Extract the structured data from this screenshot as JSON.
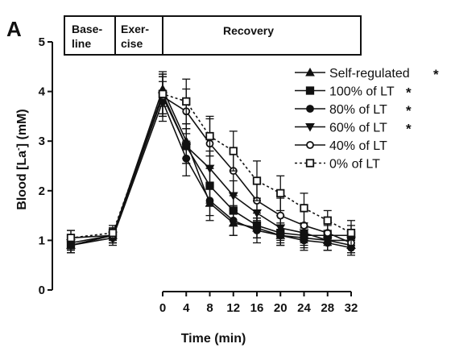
{
  "chart_data": {
    "type": "line",
    "panel_label": "A",
    "xlabel": "Time (min)",
    "ylabel_parts": [
      "Blood [La",
      "-",
      "] (mM)"
    ],
    "ylim": [
      0,
      5
    ],
    "yticks": [
      "0",
      "1",
      "2",
      "3",
      "4",
      "5"
    ],
    "x_ticks": [
      0,
      4,
      8,
      12,
      16,
      20,
      24,
      28,
      32
    ],
    "x_tick_labels": [
      "0",
      "4",
      "8",
      "12",
      "16",
      "20",
      "24",
      "28",
      "32"
    ],
    "phases": [
      {
        "name": "baseline",
        "lines": [
          "Base-",
          "line"
        ]
      },
      {
        "name": "exercise",
        "lines": [
          "Exer-",
          "cise"
        ]
      },
      {
        "name": "recovery",
        "lines": [
          "Recovery"
        ]
      }
    ],
    "grid": false,
    "legend_position": "top-right",
    "series": [
      {
        "name": "Self-regulated",
        "star": "*",
        "marker": "triangle-up",
        "line": "solid",
        "color": "#111111",
        "values": [
          0.9,
          1.1,
          4.05,
          3.0,
          1.75,
          1.35,
          1.25,
          1.1,
          1.05,
          1.0,
          0.9
        ],
        "errors": [
          0.15,
          0.15,
          0.35,
          0.35,
          0.35,
          0.25,
          0.2,
          0.2,
          0.2,
          0.2,
          0.15
        ]
      },
      {
        "name": "100% of LT",
        "star": "*",
        "marker": "square",
        "line": "solid",
        "color": "#111111",
        "values": [
          0.9,
          1.1,
          3.95,
          2.9,
          2.1,
          1.6,
          1.3,
          1.15,
          1.1,
          1.1,
          1.1
        ],
        "errors": [
          0.15,
          0.15,
          0.4,
          0.35,
          0.35,
          0.3,
          0.25,
          0.2,
          0.2,
          0.2,
          0.2
        ]
      },
      {
        "name": "80% of LT",
        "star": "*",
        "marker": "circle",
        "line": "solid",
        "color": "#111111",
        "values": [
          0.9,
          1.05,
          3.8,
          2.65,
          1.8,
          1.4,
          1.2,
          1.1,
          1.0,
          0.95,
          0.85
        ],
        "errors": [
          0.15,
          0.15,
          0.4,
          0.35,
          0.3,
          0.3,
          0.25,
          0.2,
          0.2,
          0.15,
          0.15
        ]
      },
      {
        "name": "60% of LT",
        "star": "*",
        "marker": "triangle-down",
        "line": "solid",
        "color": "#111111",
        "values": [
          0.95,
          1.1,
          3.9,
          2.9,
          2.45,
          1.9,
          1.55,
          1.25,
          1.15,
          1.0,
          1.0
        ],
        "errors": [
          0.15,
          0.15,
          0.4,
          0.35,
          0.35,
          0.3,
          0.3,
          0.25,
          0.2,
          0.2,
          0.15
        ]
      },
      {
        "name": "40% of LT",
        "star": "",
        "marker": "circle-open",
        "line": "solid",
        "color": "#111111",
        "values": [
          1.05,
          1.1,
          3.9,
          3.6,
          2.95,
          2.4,
          1.8,
          1.5,
          1.3,
          1.15,
          0.95
        ],
        "errors": [
          0.15,
          0.15,
          0.4,
          0.45,
          0.5,
          0.45,
          0.4,
          0.35,
          0.3,
          0.25,
          0.2
        ]
      },
      {
        "name": "0% of LT",
        "star": "",
        "marker": "square-open",
        "line": "dotted",
        "color": "#111111",
        "values": [
          1.05,
          1.15,
          3.95,
          3.8,
          3.1,
          2.8,
          2.2,
          1.95,
          1.65,
          1.4,
          1.15
        ],
        "errors": [
          0.15,
          0.15,
          0.4,
          0.45,
          0.4,
          0.4,
          0.4,
          0.35,
          0.3,
          0.2,
          0.25
        ]
      }
    ]
  }
}
